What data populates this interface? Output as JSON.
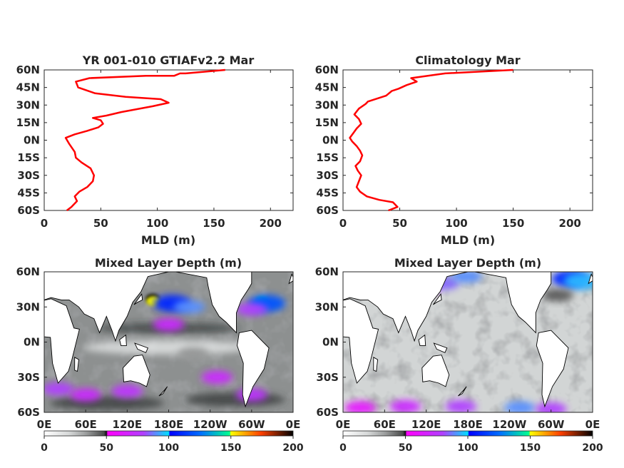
{
  "chart_data": [
    {
      "type": "line",
      "title": "YR 001-010 GTIAFv2.2 Mar",
      "xlabel": "MLD (m)",
      "ylabel": "",
      "xlim": [
        0,
        220
      ],
      "ylim": [
        -60,
        60
      ],
      "xticks": [
        "0",
        "50",
        "100",
        "150",
        "200"
      ],
      "yticks": [
        "60N",
        "45N",
        "30N",
        "15N",
        "0N",
        "15S",
        "30S",
        "45S",
        "60S"
      ],
      "color": "#ff0000",
      "series": [
        {
          "x": [
            20,
            24,
            29,
            27,
            31,
            38,
            43,
            44,
            41,
            33,
            28,
            27,
            22,
            19,
            27,
            38,
            48,
            52,
            50,
            43,
            55,
            68,
            96,
            110,
            103,
            72,
            45,
            30,
            28,
            40,
            90,
            115,
            120,
            125,
            160
          ],
          "y": [
            -60,
            -57,
            -52,
            -48,
            -44,
            -40,
            -35,
            -30,
            -24,
            -19,
            -15,
            -10,
            -3,
            2,
            5,
            8,
            11,
            14,
            17,
            19,
            21,
            24,
            29,
            32,
            35,
            37,
            40,
            45,
            50,
            53,
            55,
            55,
            57,
            57,
            60
          ]
        }
      ]
    },
    {
      "type": "line",
      "title": "Climatology Mar",
      "xlabel": "MLD (m)",
      "ylabel": "",
      "xlim": [
        0,
        220
      ],
      "ylim": [
        -60,
        60
      ],
      "xticks": [
        "0",
        "50",
        "100",
        "150",
        "200"
      ],
      "yticks": [
        "60N",
        "45N",
        "30N",
        "15N",
        "0N",
        "15S",
        "30S",
        "45S",
        "60S"
      ],
      "color": "#ff0000",
      "series": [
        {
          "x": [
            40,
            48,
            44,
            32,
            21,
            15,
            12,
            14,
            16,
            13,
            11,
            15,
            17,
            15,
            12,
            8,
            6,
            9,
            12,
            16,
            14,
            10,
            14,
            20,
            22,
            38,
            43,
            49,
            56,
            65,
            60,
            90,
            150
          ],
          "y": [
            -60,
            -57,
            -53,
            -51,
            -48,
            -44,
            -40,
            -35,
            -30,
            -26,
            -22,
            -18,
            -13,
            -9,
            -5,
            -1,
            2,
            6,
            10,
            14,
            18,
            22,
            27,
            31,
            33,
            38,
            42,
            44,
            47,
            50,
            53,
            57,
            60
          ]
        }
      ]
    },
    {
      "type": "heatmap",
      "title": "Mixed Layer Depth (m)",
      "xticks": [
        "0E",
        "60E",
        "120E",
        "180E",
        "120W",
        "60W",
        "0E"
      ],
      "yticks": [
        "60N",
        "30N",
        "0N",
        "30S",
        "60S"
      ],
      "colorbar": {
        "min": 0,
        "max": 200,
        "ticks": [
          "0",
          "50",
          "100",
          "150",
          "200"
        ]
      },
      "features": [
        {
          "lon": 157,
          "lat": 37,
          "value": 200
        },
        {
          "lon": 158,
          "lat": 35,
          "value": 150
        },
        {
          "lon": 185,
          "lat": 33,
          "value": 110
        },
        {
          "lon": 210,
          "lat": 30,
          "value": 90
        },
        {
          "lon": 180,
          "lat": 15,
          "value": 70
        },
        {
          "lon": 315,
          "lat": 35,
          "value": 140
        },
        {
          "lon": 322,
          "lat": 33,
          "value": 120
        },
        {
          "lon": 300,
          "lat": 28,
          "value": 80
        },
        {
          "lon": 20,
          "lat": -40,
          "value": 80
        },
        {
          "lon": 60,
          "lat": -45,
          "value": 70
        },
        {
          "lon": 120,
          "lat": -42,
          "value": 75
        },
        {
          "lon": 250,
          "lat": -30,
          "value": 70
        },
        {
          "lon": 300,
          "lat": -45,
          "value": 75
        },
        {
          "lon": 215,
          "lat": -10,
          "value": 35
        }
      ]
    },
    {
      "type": "heatmap",
      "title": "Mixed Layer Depth (m)",
      "xticks": [
        "0E",
        "60E",
        "120E",
        "180E",
        "120W",
        "60W",
        "0E"
      ],
      "yticks": [
        "60N",
        "30N",
        "0N",
        "30S",
        "60S"
      ],
      "colorbar": {
        "min": 0,
        "max": 200,
        "ticks": [
          "0",
          "50",
          "100",
          "150",
          "200"
        ]
      },
      "features": [
        {
          "lon": 25,
          "lat": -56,
          "value": 60
        },
        {
          "lon": 90,
          "lat": -55,
          "value": 70
        },
        {
          "lon": 170,
          "lat": -55,
          "value": 80
        },
        {
          "lon": 255,
          "lat": -56,
          "value": 90
        },
        {
          "lon": 300,
          "lat": -57,
          "value": 80
        },
        {
          "lon": 145,
          "lat": 50,
          "value": 85
        },
        {
          "lon": 178,
          "lat": 56,
          "value": 90
        },
        {
          "lon": 115,
          "lat": 46,
          "value": 55
        },
        {
          "lon": 328,
          "lat": 54,
          "value": 110
        },
        {
          "lon": 345,
          "lat": 52,
          "value": 95
        },
        {
          "lon": 310,
          "lat": 40,
          "value": 45
        }
      ]
    }
  ]
}
